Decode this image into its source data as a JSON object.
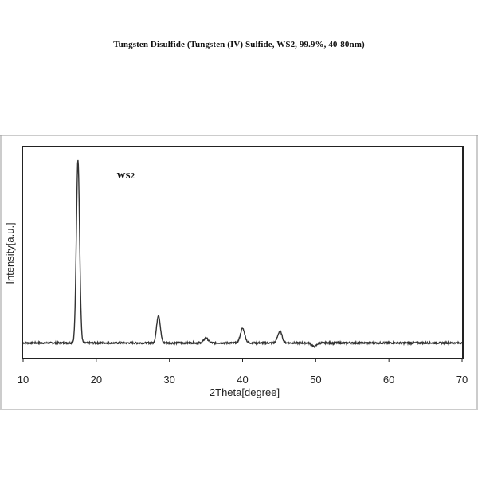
{
  "page_title": "Tungsten Disulfide (Tungsten (IV) Sulfide, WS2, 99.9%, 40-80nm)",
  "chart_data": {
    "type": "line",
    "title": "",
    "xlabel": "2Theta[degree]",
    "ylabel": "Intensity[a.u.]",
    "xlim": [
      10,
      70
    ],
    "ylim": [
      0,
      100
    ],
    "xticks": [
      10,
      20,
      30,
      40,
      50,
      60,
      70
    ],
    "grid": false,
    "annotations": [
      {
        "text": "WS2",
        "x": 22.8,
        "y": 90
      }
    ],
    "series": [
      {
        "baseline": 4,
        "peaks": [
          {
            "x": 17.5,
            "y": 100,
            "width": 0.22
          },
          {
            "x": 28.5,
            "y": 18.5,
            "width": 0.25
          },
          {
            "x": 35.0,
            "y": 6.5,
            "width": 0.3
          },
          {
            "x": 40.0,
            "y": 11.5,
            "width": 0.3
          },
          {
            "x": 45.1,
            "y": 10.0,
            "width": 0.3
          },
          {
            "x": 49.8,
            "y": 2.0,
            "width": 0.3
          }
        ]
      }
    ]
  }
}
